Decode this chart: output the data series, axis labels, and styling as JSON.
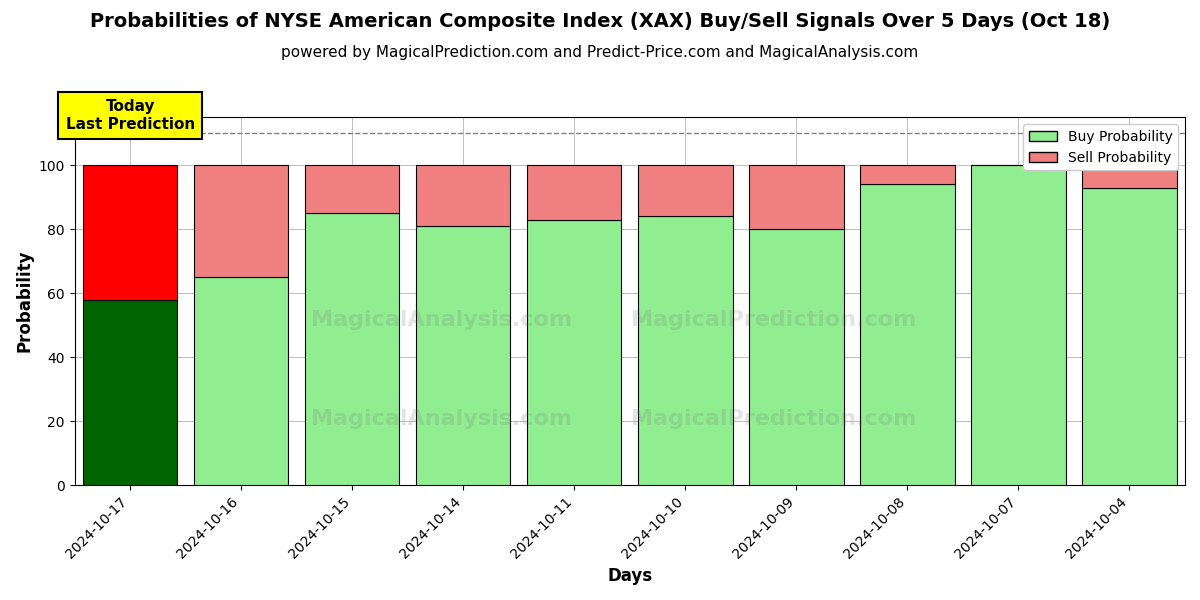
{
  "title": "Probabilities of NYSE American Composite Index (XAX) Buy/Sell Signals Over 5 Days (Oct 18)",
  "subtitle": "powered by MagicalPrediction.com and Predict-Price.com and MagicalAnalysis.com",
  "xlabel": "Days",
  "ylabel": "Probability",
  "categories": [
    "2024-10-17",
    "2024-10-16",
    "2024-10-15",
    "2024-10-14",
    "2024-10-11",
    "2024-10-10",
    "2024-10-09",
    "2024-10-08",
    "2024-10-07",
    "2024-10-04"
  ],
  "buy_values": [
    58,
    65,
    85,
    81,
    83,
    84,
    80,
    94,
    100,
    93
  ],
  "sell_values": [
    42,
    35,
    15,
    19,
    17,
    16,
    20,
    6,
    0,
    7
  ],
  "today_bar_buy_color": "#006400",
  "today_bar_sell_color": "#FF0000",
  "normal_bar_buy_color": "#90EE90",
  "normal_bar_sell_color": "#F08080",
  "bar_edge_color": "#000000",
  "today_annotation": "Today\nLast Prediction",
  "annotation_bg_color": "#FFFF00",
  "annotation_fontsize": 11,
  "dashed_line_y": 110,
  "ylim": [
    0,
    115
  ],
  "yticks": [
    0,
    20,
    40,
    60,
    80,
    100
  ],
  "legend_buy_label": "Buy Probability",
  "legend_sell_label": "Sell Probability",
  "title_fontsize": 14,
  "subtitle_fontsize": 11,
  "axis_label_fontsize": 12,
  "tick_fontsize": 10,
  "bar_width": 0.85,
  "background_color": "#FFFFFF",
  "grid_color": "#AAAAAA",
  "watermark1": "MagicalAnalysis.com",
  "watermark2": "MagicalPrediction.com"
}
